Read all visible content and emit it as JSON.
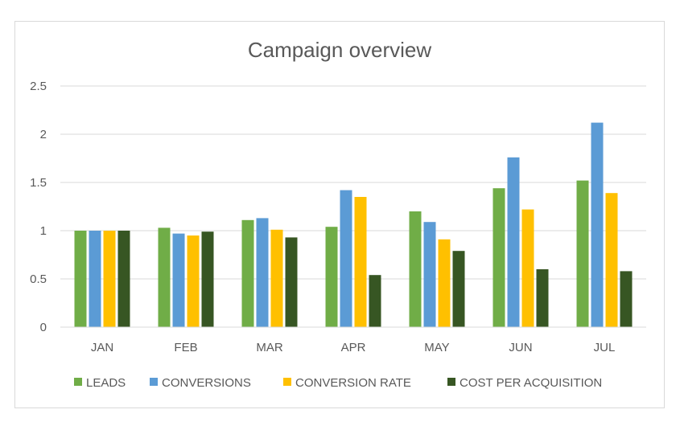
{
  "chart_data": {
    "type": "bar",
    "title": "Campaign overview",
    "categories": [
      "JAN",
      "FEB",
      "MAR",
      "APR",
      "MAY",
      "JUN",
      "JUL"
    ],
    "ylim": [
      0,
      2.5
    ],
    "yticks": [
      "0",
      "0.5",
      "1",
      "1.5",
      "2",
      "2.5"
    ],
    "grid": true,
    "legend_position": "bottom",
    "series": [
      {
        "name": "LEADS",
        "color": "#70ad47",
        "values": [
          1.0,
          1.03,
          1.11,
          1.04,
          1.2,
          1.44,
          1.52
        ]
      },
      {
        "name": "CONVERSIONS",
        "color": "#5b9bd5",
        "values": [
          1.0,
          0.97,
          1.13,
          1.42,
          1.09,
          1.76,
          2.12
        ]
      },
      {
        "name": "CONVERSION RATE",
        "color": "#ffc000",
        "values": [
          1.0,
          0.95,
          1.01,
          1.35,
          0.91,
          1.22,
          1.39
        ]
      },
      {
        "name": "COST PER ACQUISITION",
        "color": "#375623",
        "values": [
          1.0,
          0.99,
          0.93,
          0.54,
          0.79,
          0.6,
          0.58
        ]
      }
    ]
  }
}
